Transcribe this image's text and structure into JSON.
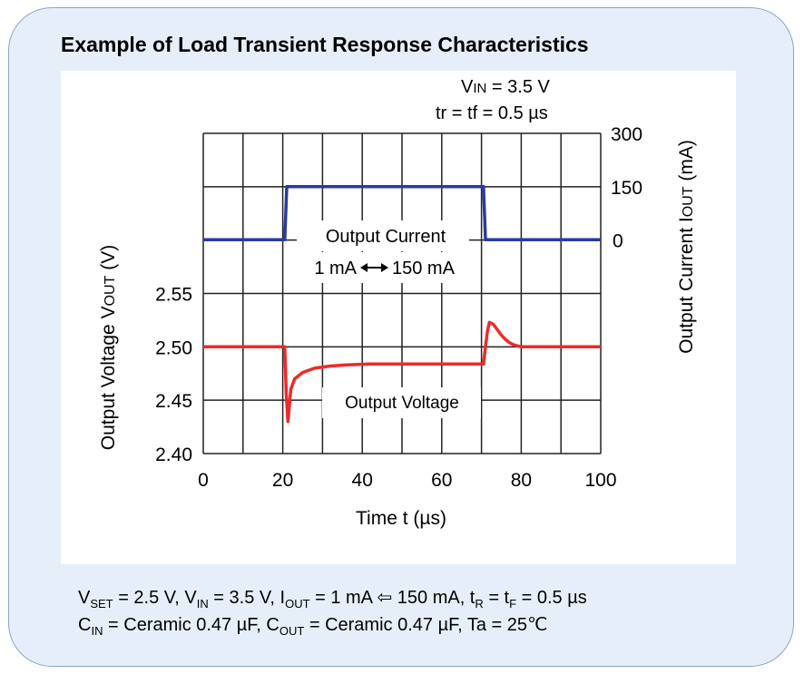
{
  "title": "Example of Load Transient Response Characteristics",
  "colors": {
    "current": "#2b3aa0",
    "voltage": "#ee2a2a",
    "card_bg": "#e6eff9",
    "card_border": "#8aa4c4",
    "grid": "#222222"
  },
  "annotations": {
    "vin": {
      "main": "V",
      "sub": "IN",
      "rest": " = 3.5 V"
    },
    "trtf": "tr = tf = 0.5 µs",
    "current_label": "Output Current",
    "current_range": [
      "1 mA",
      "150 mA"
    ],
    "voltage_label": "Output Voltage"
  },
  "axes": {
    "x_label": "Time t (µs)",
    "y_left_label": {
      "main": "Output Voltage V",
      "sub": "OUT",
      "rest": " (V)"
    },
    "y_right_label": {
      "main": "Output Current I",
      "sub": "OUT",
      "rest": " (mA)"
    }
  },
  "footer": {
    "line1": [
      {
        "t": "V"
      },
      {
        "s": "SET"
      },
      {
        "t": " = 2.5 V, V"
      },
      {
        "s": "IN"
      },
      {
        "t": " = 3.5 V, I"
      },
      {
        "s": "OUT"
      },
      {
        "t": " = 1 mA ⇦ 150 mA, t"
      },
      {
        "s": "R"
      },
      {
        "t": " = t"
      },
      {
        "s": "F"
      },
      {
        "t": " = 0.5 µs"
      }
    ],
    "line2": [
      {
        "t": "C"
      },
      {
        "s": "IN"
      },
      {
        "t": " = Ceramic 0.47 µF, C"
      },
      {
        "s": "OUT"
      },
      {
        "t": " = Ceramic 0.47 µF, Ta = 25℃"
      }
    ]
  },
  "chart_data": {
    "type": "line",
    "x_ticks": [
      0,
      20,
      40,
      60,
      80,
      100
    ],
    "xlim": [
      0,
      100
    ],
    "y_left_ticks": [
      "2.40",
      "2.45",
      "2.50",
      "2.55"
    ],
    "y_left_lim": [
      2.4,
      2.6
    ],
    "y_right_ticks": [
      "0",
      "150",
      "300"
    ],
    "grid": true,
    "series": [
      {
        "name": "Output Current",
        "axis": "right",
        "x": [
          0,
          20.5,
          21,
          70.5,
          71,
          100
        ],
        "y": [
          1,
          1,
          150,
          150,
          1,
          1
        ]
      },
      {
        "name": "Output Voltage",
        "axis": "left",
        "x": [
          0,
          20.5,
          20.9,
          21.3,
          22,
          23,
          25,
          28,
          32,
          36,
          42,
          50,
          60,
          70.5,
          71,
          71.5,
          72,
          73,
          74,
          75,
          76,
          77,
          78,
          79,
          80,
          100
        ],
        "y": [
          2.5,
          2.5,
          2.455,
          2.43,
          2.46,
          2.47,
          2.476,
          2.48,
          2.482,
          2.483,
          2.484,
          2.484,
          2.484,
          2.484,
          2.5,
          2.515,
          2.523,
          2.521,
          2.516,
          2.511,
          2.507,
          2.504,
          2.502,
          2.501,
          2.5,
          2.5
        ]
      }
    ]
  }
}
